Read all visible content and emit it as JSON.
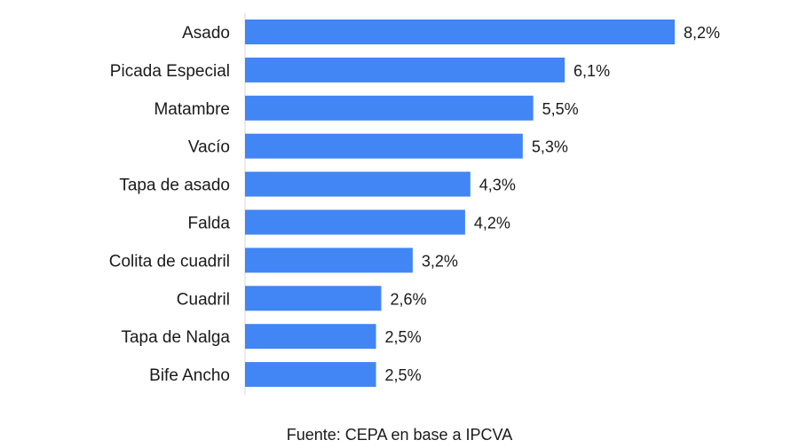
{
  "chart_data": {
    "type": "bar",
    "orientation": "horizontal",
    "title": "",
    "xlabel": "",
    "ylabel": "",
    "categories": [
      "Asado",
      "Picada Especial",
      "Matambre",
      "Vacío",
      "Tapa de asado",
      "Falda",
      "Colita de cuadril",
      "Cuadril",
      "Tapa de Nalga",
      "Bife Ancho"
    ],
    "values": [
      8.2,
      6.1,
      5.5,
      5.3,
      4.3,
      4.2,
      3.2,
      2.6,
      2.5,
      2.5
    ],
    "value_labels": [
      "8,2%",
      "6,1%",
      "5,5%",
      "5,3%",
      "4,3%",
      "4,2%",
      "3,2%",
      "2,6%",
      "2,5%",
      "2,5%"
    ],
    "xlim": [
      0,
      8.2
    ],
    "grid": false,
    "legend": "none",
    "bar_color": "#4285f4",
    "source": "Fuente: CEPA en base a IPCVA"
  }
}
